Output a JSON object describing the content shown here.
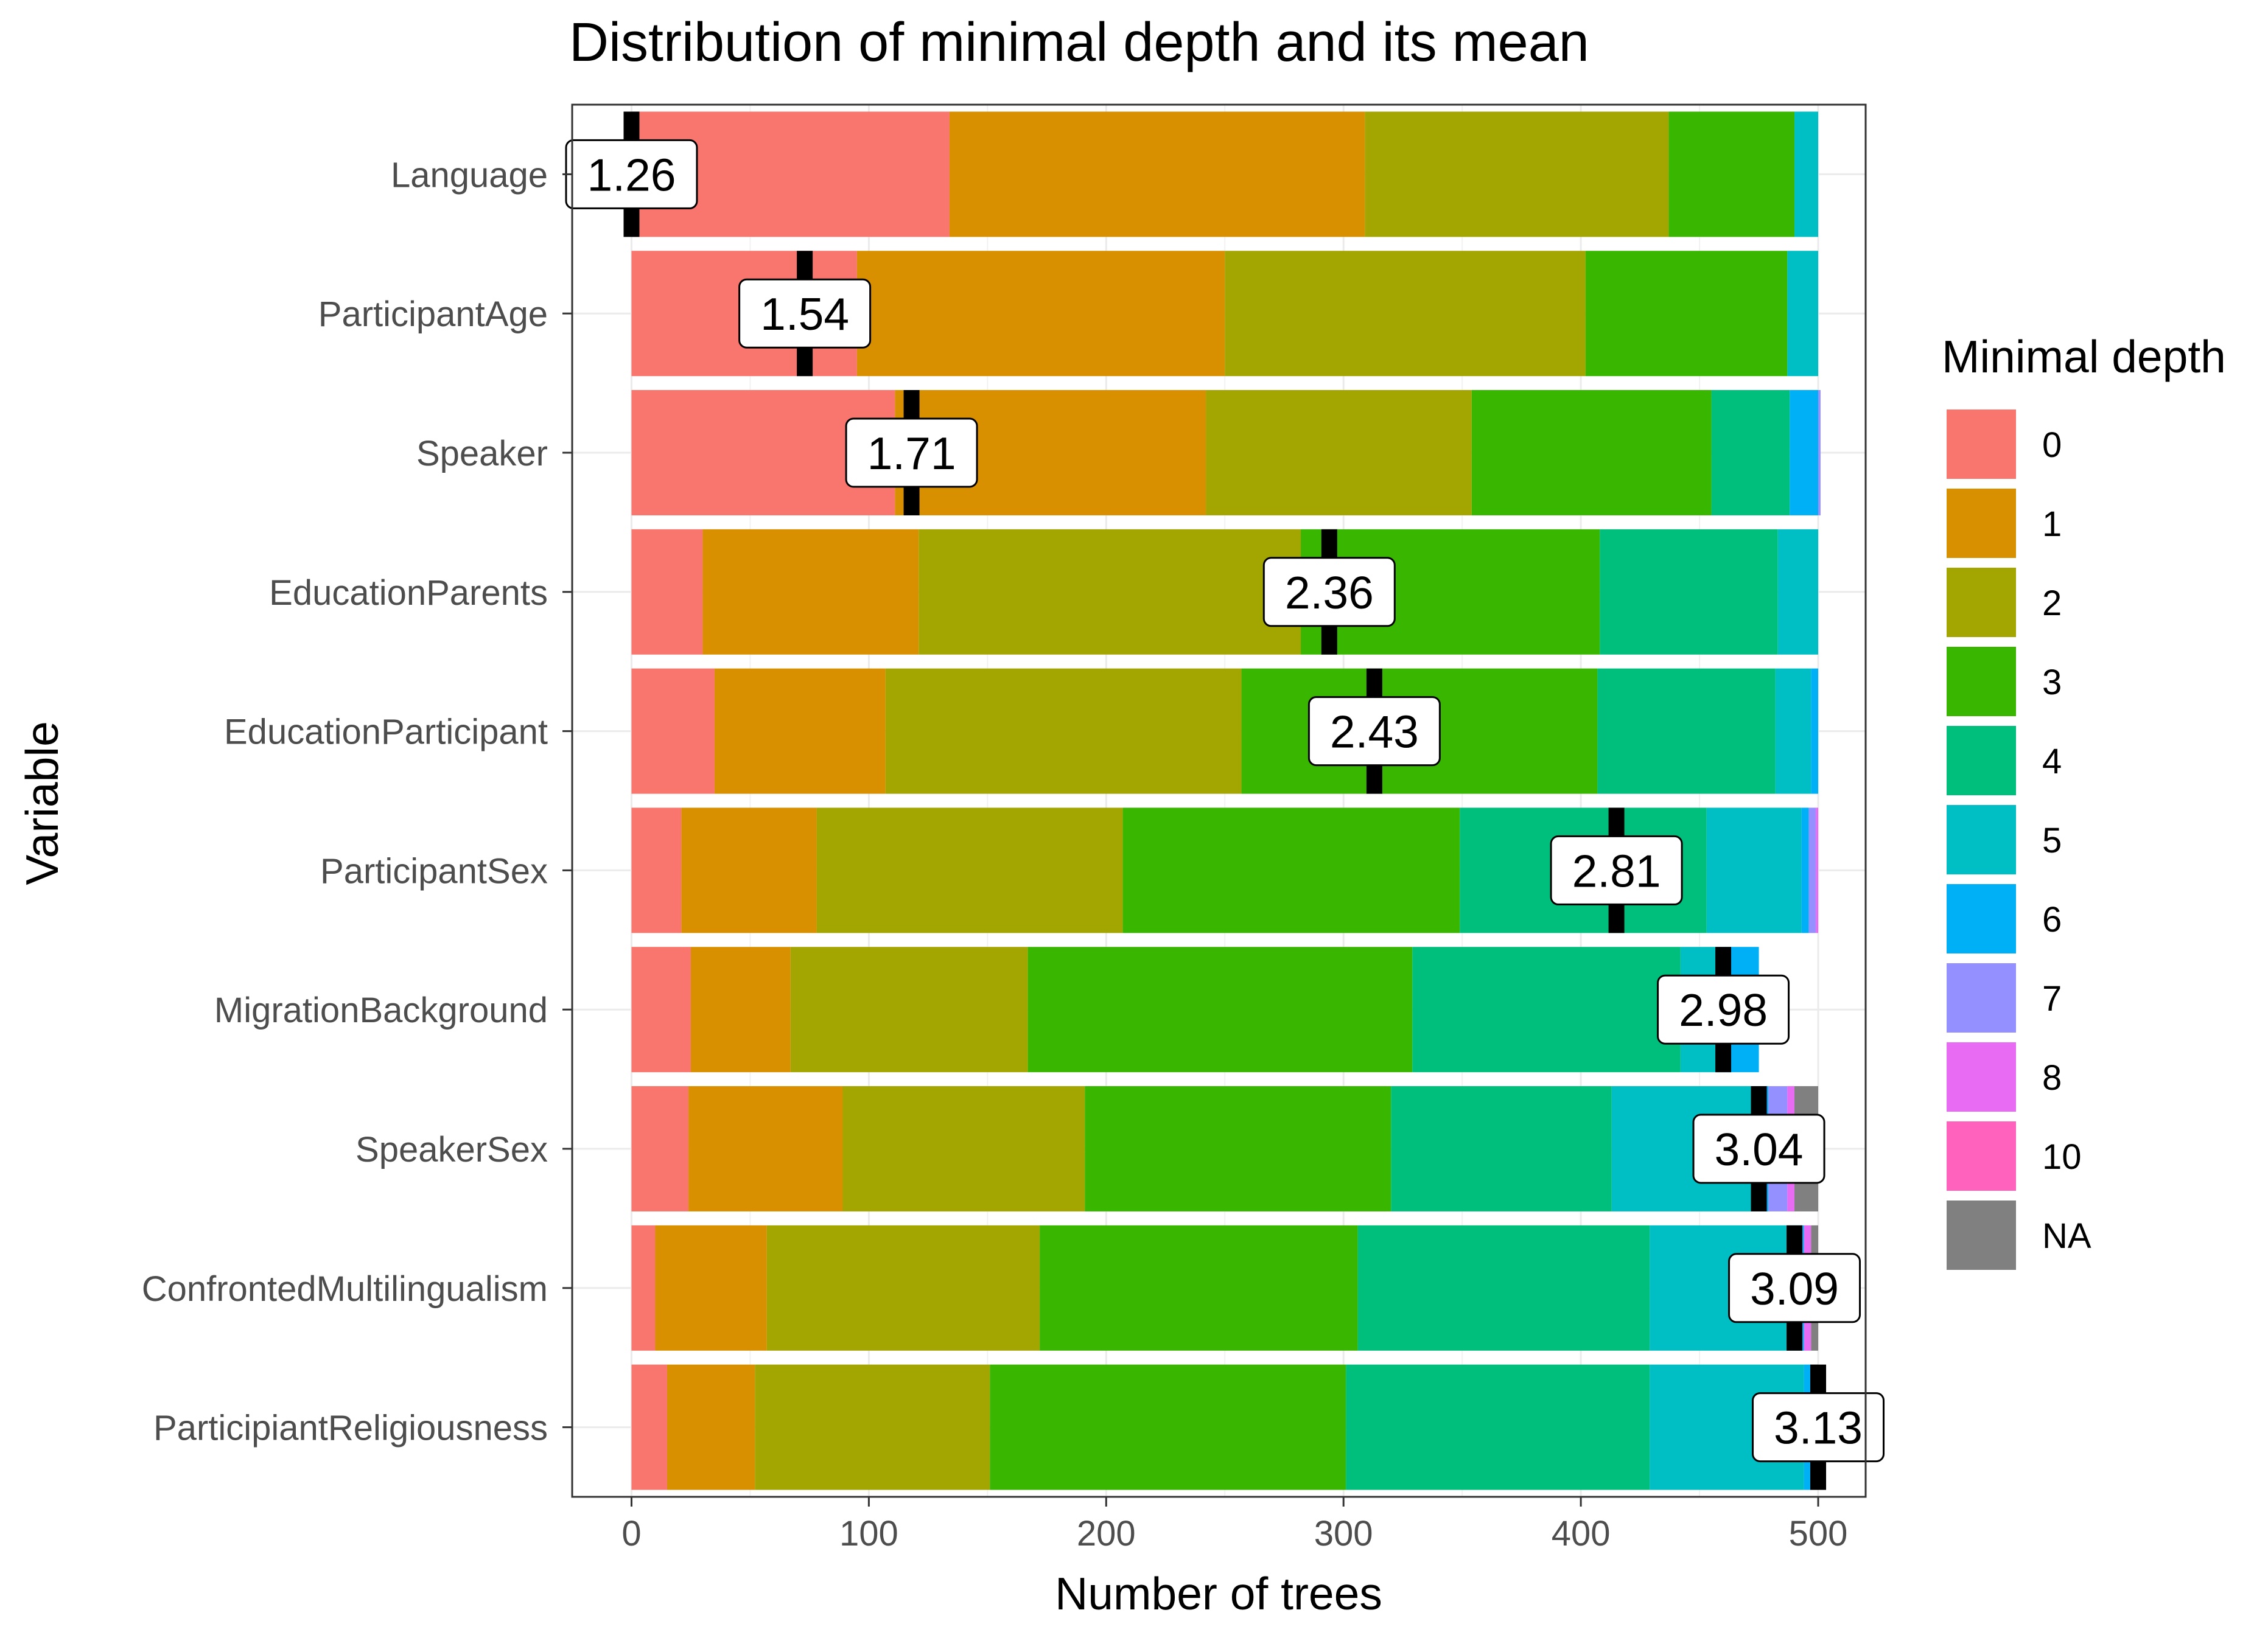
{
  "chart_data": {
    "type": "bar",
    "stacked": true,
    "orientation": "horizontal",
    "title": "Distribution of minimal depth and its mean",
    "xlabel": "Number of trees",
    "ylabel": "Variable",
    "xlim": [
      -25,
      520
    ],
    "xticks": [
      0,
      100,
      200,
      300,
      400,
      500
    ],
    "grid": true,
    "legend": {
      "title": "Minimal depth",
      "position": "right",
      "entries": [
        "0",
        "1",
        "2",
        "3",
        "4",
        "5",
        "6",
        "7",
        "8",
        "10",
        "NA"
      ]
    },
    "colors": {
      "0": "#F8766D",
      "1": "#D89000",
      "2": "#A3A500",
      "3": "#39B600",
      "4": "#00BF7D",
      "5": "#00BFC4",
      "6": "#00B0F6",
      "7": "#9590FF",
      "8": "#E76BF3",
      "10": "#FF62BC",
      "NA": "#808080"
    },
    "categories": [
      "Language",
      "ParticipantAge",
      "Speaker",
      "EducationParents",
      "EducationParticipant",
      "ParticipantSex",
      "MigrationBackground",
      "SpeakerSex",
      "ConfrontedMultilingualism",
      "ParticipiantReligiousness"
    ],
    "series": [
      {
        "name": "0",
        "values": [
          134,
          95,
          111,
          30,
          35,
          21,
          25,
          24,
          10,
          15
        ]
      },
      {
        "name": "1",
        "values": [
          175,
          155,
          131,
          91,
          72,
          57,
          42,
          65,
          47,
          37
        ]
      },
      {
        "name": "2",
        "values": [
          128,
          152,
          112,
          161,
          150,
          129,
          100,
          102,
          115,
          99
        ]
      },
      {
        "name": "3",
        "values": [
          53,
          85,
          101,
          126,
          150,
          142,
          162,
          129,
          134,
          150
        ]
      },
      {
        "name": "4",
        "values": [
          0,
          0,
          33,
          75,
          75,
          104,
          113,
          93,
          123,
          128
        ]
      },
      {
        "name": "5",
        "values": [
          10,
          13,
          0,
          17,
          15,
          40,
          18,
          60,
          63,
          65
        ]
      },
      {
        "name": "6",
        "values": [
          0,
          0,
          12,
          0,
          3,
          3,
          15,
          6,
          2,
          3
        ]
      },
      {
        "name": "7",
        "values": [
          0,
          0,
          1,
          0,
          0,
          3,
          0,
          8,
          0,
          0
        ]
      },
      {
        "name": "8",
        "values": [
          0,
          0,
          0,
          0,
          0,
          1,
          0,
          3,
          3,
          1
        ]
      },
      {
        "name": "10",
        "values": [
          0,
          0,
          0,
          0,
          0,
          0,
          0,
          0,
          0,
          0
        ]
      },
      {
        "name": "NA",
        "values": [
          0,
          0,
          0,
          0,
          0,
          0,
          0,
          10,
          3,
          2
        ]
      }
    ],
    "mean_markers": {
      "values": [
        1.26,
        1.54,
        1.71,
        2.36,
        2.43,
        2.81,
        2.98,
        3.04,
        3.09,
        3.13
      ],
      "labels": [
        "1.26",
        "1.54",
        "1.71",
        "2.36",
        "2.43",
        "2.81",
        "2.98",
        "3.04",
        "3.09",
        "3.13"
      ],
      "x_positions": [
        0,
        73,
        118,
        294,
        313,
        415,
        460,
        475,
        490,
        500
      ]
    }
  }
}
